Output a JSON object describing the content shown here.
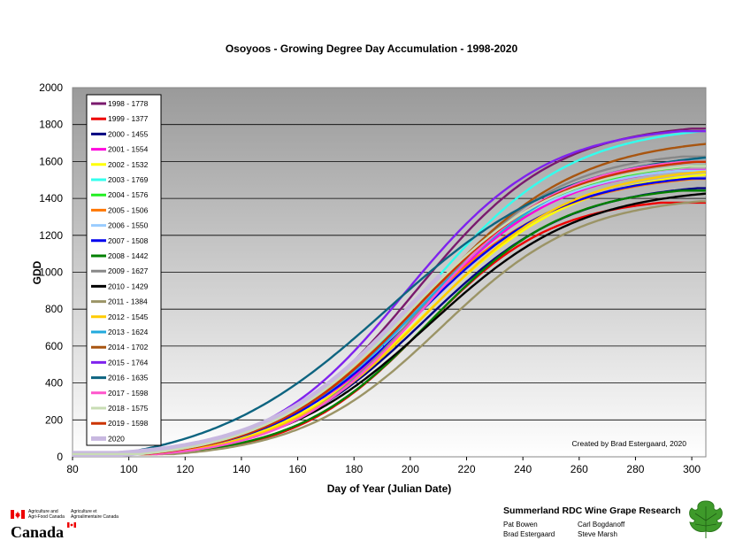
{
  "chart_data": {
    "type": "line",
    "title": "Osoyoos - Growing Degree Day Accumulation - 1998-2020",
    "xlabel": "Day of Year (Julian Date)",
    "ylabel": "GDD",
    "xlim": [
      80,
      305
    ],
    "ylim": [
      0,
      2000
    ],
    "x_ticks": [
      80,
      100,
      120,
      140,
      160,
      180,
      200,
      220,
      240,
      260,
      280,
      300
    ],
    "y_ticks": [
      0,
      200,
      400,
      600,
      800,
      1000,
      1200,
      1400,
      1600,
      1800,
      2000
    ],
    "grid": "horizontal",
    "legend_position": "top-left",
    "annotation": "Created by Brad Estergaard, 2020",
    "series": [
      {
        "name": "1998 - 1778",
        "color": "#7a1a6e",
        "final": 1778,
        "start": 100,
        "mid": 202,
        "scale": 25
      },
      {
        "name": "1999 - 1377",
        "color": "#ee0000",
        "final": 1377,
        "start": 112,
        "mid": 205,
        "scale": 23
      },
      {
        "name": "2000 - 1455",
        "color": "#000080",
        "final": 1455,
        "start": 105,
        "mid": 205,
        "scale": 26
      },
      {
        "name": "2001 - 1554",
        "color": "#ff00dd",
        "final": 1554,
        "start": 110,
        "mid": 203,
        "scale": 25
      },
      {
        "name": "2002 - 1532",
        "color": "#ffff00",
        "final": 1532,
        "start": 108,
        "mid": 205,
        "scale": 27
      },
      {
        "name": "2003 - 1769",
        "color": "#33ffee",
        "final": 1769,
        "start": 106,
        "mid": 205,
        "scale": 26
      },
      {
        "name": "2004 - 1576",
        "color": "#22ee22",
        "final": 1576,
        "start": 104,
        "mid": 202,
        "scale": 26
      },
      {
        "name": "2005 - 1506",
        "color": "#ff7700",
        "final": 1506,
        "start": 100,
        "mid": 200,
        "scale": 27
      },
      {
        "name": "2006 - 1550",
        "color": "#99ccff",
        "final": 1550,
        "start": 104,
        "mid": 201,
        "scale": 25
      },
      {
        "name": "2007 - 1508",
        "color": "#0000ee",
        "final": 1508,
        "start": 104,
        "mid": 202,
        "scale": 26
      },
      {
        "name": "2008 - 1442",
        "color": "#008000",
        "final": 1442,
        "start": 110,
        "mid": 207,
        "scale": 24
      },
      {
        "name": "2009 - 1627",
        "color": "#888888",
        "final": 1627,
        "start": 107,
        "mid": 205,
        "scale": 24
      },
      {
        "name": "2010 - 1429",
        "color": "#000000",
        "final": 1429,
        "start": 108,
        "mid": 207,
        "scale": 27
      },
      {
        "name": "2011 - 1384",
        "color": "#9b9466",
        "final": 1384,
        "start": 116,
        "mid": 211,
        "scale": 25
      },
      {
        "name": "2012 - 1545",
        "color": "#ffcc00",
        "final": 1545,
        "start": 108,
        "mid": 206,
        "scale": 26
      },
      {
        "name": "2013 - 1624",
        "color": "#22aadd",
        "final": 1624,
        "start": 104,
        "mid": 204,
        "scale": 27
      },
      {
        "name": "2014 - 1702",
        "color": "#a85510",
        "final": 1702,
        "start": 104,
        "mid": 205,
        "scale": 27
      },
      {
        "name": "2015 - 1764",
        "color": "#7f22ee",
        "final": 1764,
        "start": 104,
        "mid": 198,
        "scale": 25
      },
      {
        "name": "2016 - 1635",
        "color": "#0d6480",
        "final": 1635,
        "start": 96,
        "mid": 192,
        "scale": 32
      },
      {
        "name": "2017 - 1598",
        "color": "#ff55cc",
        "final": 1598,
        "start": 110,
        "mid": 205,
        "scale": 24
      },
      {
        "name": "2018 - 1575",
        "color": "#c8dcb4",
        "final": 1575,
        "start": 104,
        "mid": 200,
        "scale": 26
      },
      {
        "name": "2019 - 1598",
        "color": "#cc3300",
        "final": 1598,
        "start": 106,
        "mid": 202,
        "scale": 26
      },
      {
        "name": "2020",
        "color": "#c8b8e0",
        "final": 1600,
        "start": 96,
        "mid": 200,
        "scale": 26,
        "end": 211
      }
    ]
  },
  "footer": {
    "agency_en": "Agriculture and Agri-Food Canada",
    "agency_fr": "Agriculture et Agroalimentaire Canada",
    "canada_wordmark": "Canada",
    "research_title": "Summerland RDC Wine Grape Research",
    "people": [
      "Pat Bowen",
      "Carl Bogdanoff",
      "Brad Estergaard",
      "Steve Marsh"
    ]
  }
}
